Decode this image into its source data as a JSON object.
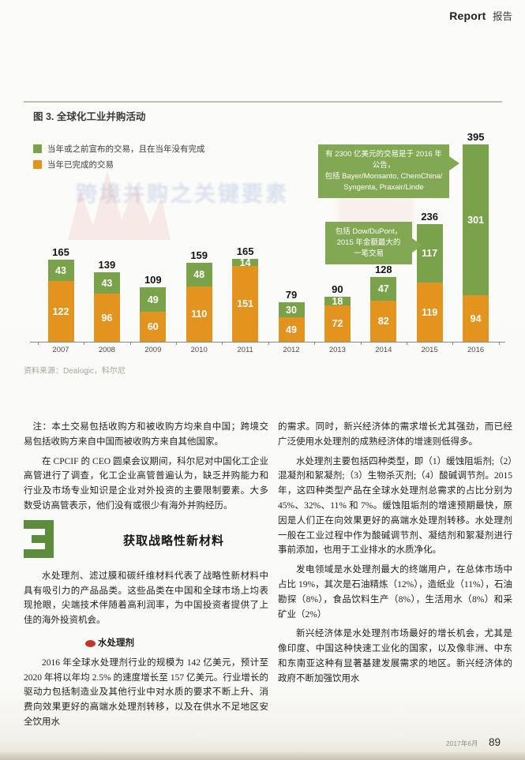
{
  "header": {
    "magazine_section_en": "Report",
    "magazine_section_zh": "报告"
  },
  "figure": {
    "title": "图 3. 全球化工业并购活动",
    "legend": [
      {
        "label": "当年或之前宣布的交易，且在当年没有完成",
        "color": "#7aa24b"
      },
      {
        "label": "当年已完成的交易",
        "color": "#e2941f"
      }
    ],
    "source": "资料来源：Dealogic，科尔尼"
  },
  "chart_data": {
    "type": "bar",
    "stacked": true,
    "grid": false,
    "legend_position": "top-left",
    "categories": [
      "2007",
      "2008",
      "2009",
      "2010",
      "2011",
      "2012",
      "2013",
      "2014",
      "2015",
      "2016"
    ],
    "series": [
      {
        "name": "当年已完成的交易",
        "color": "#e2941f",
        "values": [
          122,
          96,
          60,
          110,
          151,
          49,
          72,
          82,
          119,
          94
        ]
      },
      {
        "name": "当年或之前宣布的交易，且在当年没有完成",
        "color": "#7aa24b",
        "values": [
          43,
          43,
          49,
          48,
          14,
          30,
          18,
          47,
          117,
          301
        ]
      }
    ],
    "totals": [
      165,
      139,
      109,
      159,
      165,
      79,
      90,
      128,
      236,
      395
    ],
    "annotations": [
      {
        "target": "2016",
        "lines": [
          "有 2300 亿美元的交易是于 2016 年公告，",
          "包括 Bayer/Monsanto, ChemChina/",
          "Syngenta, Praxair/Linde"
        ]
      },
      {
        "target": "2015",
        "lines": [
          "包括 Dow/DuPont，",
          "2015 年金额最大的",
          "一笔交易"
        ]
      }
    ]
  },
  "ghost": {
    "bleed_title": "跨境并购之关键要素"
  },
  "article": {
    "left": {
      "note": "注：本土交易包括收购方和被收购方均来自中国；跨境交易包括收购方来自中国而被收购方来自其他国家。",
      "para1": "在 CPCIF 的 CEO 圆桌会议期间，科尔尼对中国化工企业高管进行了调查，化工企业高管普遍认为，缺乏并购能力和行业及市场专业知识是企业对外投资的主要限制要素。大多数受访高管表示，他们没有或很少有海外并购经历。",
      "section_number": "3",
      "section_title": "获取战略性新材料",
      "para2": "水处理剂、滤过膜和碳纤维材料代表了战略性新材料中具有吸引力的产品品类。这些品类在中国和全球市场上均表现抢眼，尖端技术伴随着高利润率，为中国投资者提供了上佳的海外投资机会。",
      "subhead": "水处理剂",
      "para3": "2016 年全球水处理剂行业的规模为 142 亿美元，预计至 2020 年将以年均 2.5% 的速度增长至 157 亿美元。行业增长的驱动力包括制造业及其他行业中对水质的要求不断上升、消费向效果更好的高端水处理剂转移，以及在供水不足地区安全饮用水"
    },
    "right": {
      "para1": "的需求。同时，新兴经济体的需求增长尤其强劲，而已经广泛使用水处理剂的成熟经济体的增速则低得多。",
      "para2": "水处理剂主要包括四种类型，即（1）缓蚀阻垢剂;（2）混凝剂和絮凝剂;（3）生物杀灭剂;（4）酸碱调节剂。2015 年，这四种类型产品在全球水处理剂总需求的占比分别为 45%、32%、11% 和 7%。缓蚀阻垢剂的增速预期最快，原因是人们正在向效果更好的高端水处理剂转移。水处理剂一般在工业过程中作为酸碱调节剂、凝结剂和絮凝剂进行事前添加，也用于工业排水的水质净化。",
      "para3": "发电领域是水处理剂最大的终端用户，在总体市场中占比 19%，其次是石油精炼（12%），造纸业（11%），石油勘探（8%），食品饮料生产（8%），生活用水（8%）和采矿业（2%）",
      "para4": "新兴经济体是水处理剂市场最好的增长机会，尤其是像印度、中国这种快速工业化的国家，以及像非洲、中东和东南亚这种有显著基建发展需求的地区。新兴经济体的政府不断加强饮用水"
    }
  },
  "footer": {
    "issue": "2017年6月",
    "page": "89"
  }
}
